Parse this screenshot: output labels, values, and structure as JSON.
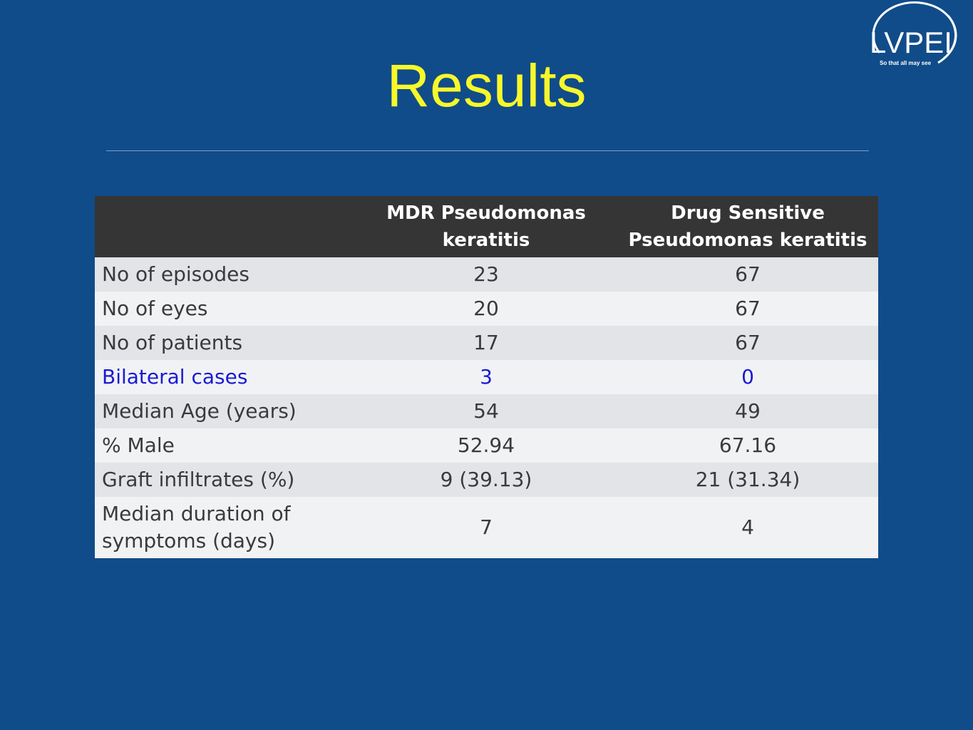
{
  "logo": {
    "text": "LVPEI",
    "tagline": "So that all may see"
  },
  "slide": {
    "title": "Results"
  },
  "table": {
    "headers": [
      "",
      "MDR Pseudomonas keratitis",
      "Drug Sensitive Pseudomonas keratitis"
    ],
    "rows": [
      {
        "label": "No of episodes",
        "mdr": "23",
        "sensitive": "67"
      },
      {
        "label": "No of eyes",
        "mdr": "20",
        "sensitive": "67"
      },
      {
        "label": "No of patients",
        "mdr": "17",
        "sensitive": "67"
      },
      {
        "label": "Bilateral cases",
        "mdr": "3",
        "sensitive": "0"
      },
      {
        "label": "Median Age (years)",
        "mdr": "54",
        "sensitive": "49"
      },
      {
        "label": "% Male",
        "mdr": "52.94",
        "sensitive": "67.16"
      },
      {
        "label": "Graft infiltrates (%)",
        "mdr": "9 (39.13)",
        "sensitive": "21 (31.34)"
      },
      {
        "label": "Median duration of symptoms (days)",
        "mdr": "7",
        "sensitive": "4"
      }
    ]
  },
  "colors": {
    "background": "#104c89",
    "title": "#f7f72a",
    "header_bg": "#353535",
    "highlight_text": "#1a1ad2"
  }
}
